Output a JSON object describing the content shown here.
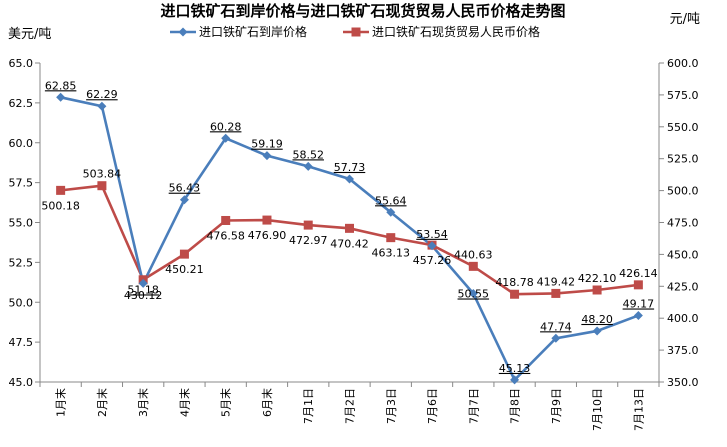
{
  "chart_data": {
    "type": "line",
    "title": "进口铁矿石到岸价格与进口铁矿石现货贸易人民币价格走势图",
    "ylabel_left": "美元/吨",
    "ylabel_right": "元/吨",
    "categories": [
      "1月末",
      "2月末",
      "3月末",
      "4月末",
      "5月末",
      "6月末",
      "7月1日",
      "7月2日",
      "7月3日",
      "7月6日",
      "7月7日",
      "7月8日",
      "7月9日",
      "7月10日",
      "7月13日"
    ],
    "series": [
      {
        "name": "进口铁矿石到岸价格",
        "axis": "left",
        "color": "#4a7ebb",
        "marker": "diamond",
        "values": [
          62.85,
          62.29,
          51.18,
          56.43,
          60.28,
          59.19,
          58.52,
          57.73,
          55.64,
          53.54,
          50.55,
          45.13,
          47.74,
          48.2,
          49.17
        ],
        "labels": [
          "62.85",
          "62.29",
          "51.18",
          "56.43",
          "60.28",
          "59.19",
          "58.52",
          "57.73",
          "55.64",
          "53.54",
          "50.55",
          "45.13",
          "47.74",
          "48.20",
          "49.17"
        ]
      },
      {
        "name": "进口铁矿石现货贸易人民币价格",
        "axis": "right",
        "color": "#be4b48",
        "marker": "square",
        "values": [
          500.18,
          503.84,
          430.12,
          450.21,
          476.58,
          476.9,
          472.97,
          470.42,
          463.13,
          457.26,
          440.63,
          418.78,
          419.42,
          422.1,
          426.14
        ],
        "labels": [
          "500.18",
          "503.84",
          "430.12",
          "450.21",
          "476.58",
          "476.90",
          "472.97",
          "470.42",
          "463.13",
          "457.26",
          "440.63",
          "418.78",
          "419.42",
          "422.10",
          "426.14"
        ]
      }
    ],
    "ylim_left": [
      45.0,
      65.0
    ],
    "ylim_right": [
      350.0,
      600.0
    ],
    "yticks_left": [
      "65.0",
      "62.5",
      "60.0",
      "57.5",
      "55.0",
      "52.5",
      "50.0",
      "47.5",
      "45.0"
    ],
    "yticks_right": [
      "600.0",
      "575.0",
      "550.0",
      "525.0",
      "500.0",
      "475.0",
      "450.0",
      "425.0",
      "400.0",
      "375.0",
      "350.0"
    ],
    "grid": false,
    "legend_position": "top-center"
  }
}
